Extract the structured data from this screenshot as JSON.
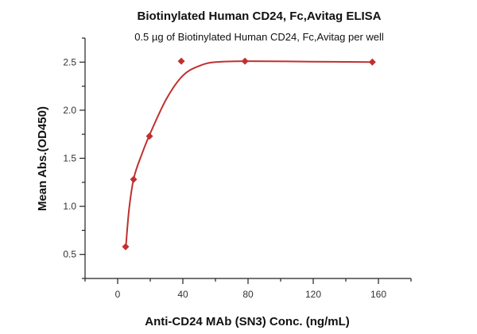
{
  "chart_data": {
    "type": "scatter",
    "title": "Biotinylated Human CD24, Fc,Avitag ELISA",
    "subtitle": "0.5 µg of Biotinylated Human CD24, Fc,Avitag per well",
    "xlabel": "Anti-CD24 MAb (SN3) Conc. (ng/mL)",
    "ylabel": "Mean Abs.(OD450)",
    "xlim": [
      -20,
      180
    ],
    "ylim": [
      0.25,
      2.75
    ],
    "xticks": [
      "0",
      "40",
      "80",
      "120",
      "160"
    ],
    "yticks": [
      "0.5",
      "1.0",
      "1.5",
      "2.0",
      "2.5"
    ],
    "grid": false,
    "fit_curve": true,
    "color": "#c0302f",
    "marker": "diamond",
    "series": [
      {
        "x": [
          4.88,
          9.77,
          19.53,
          39.06,
          78.13,
          156.25
        ],
        "y": [
          0.58,
          1.28,
          1.73,
          2.51,
          2.51,
          2.5
        ]
      }
    ]
  }
}
